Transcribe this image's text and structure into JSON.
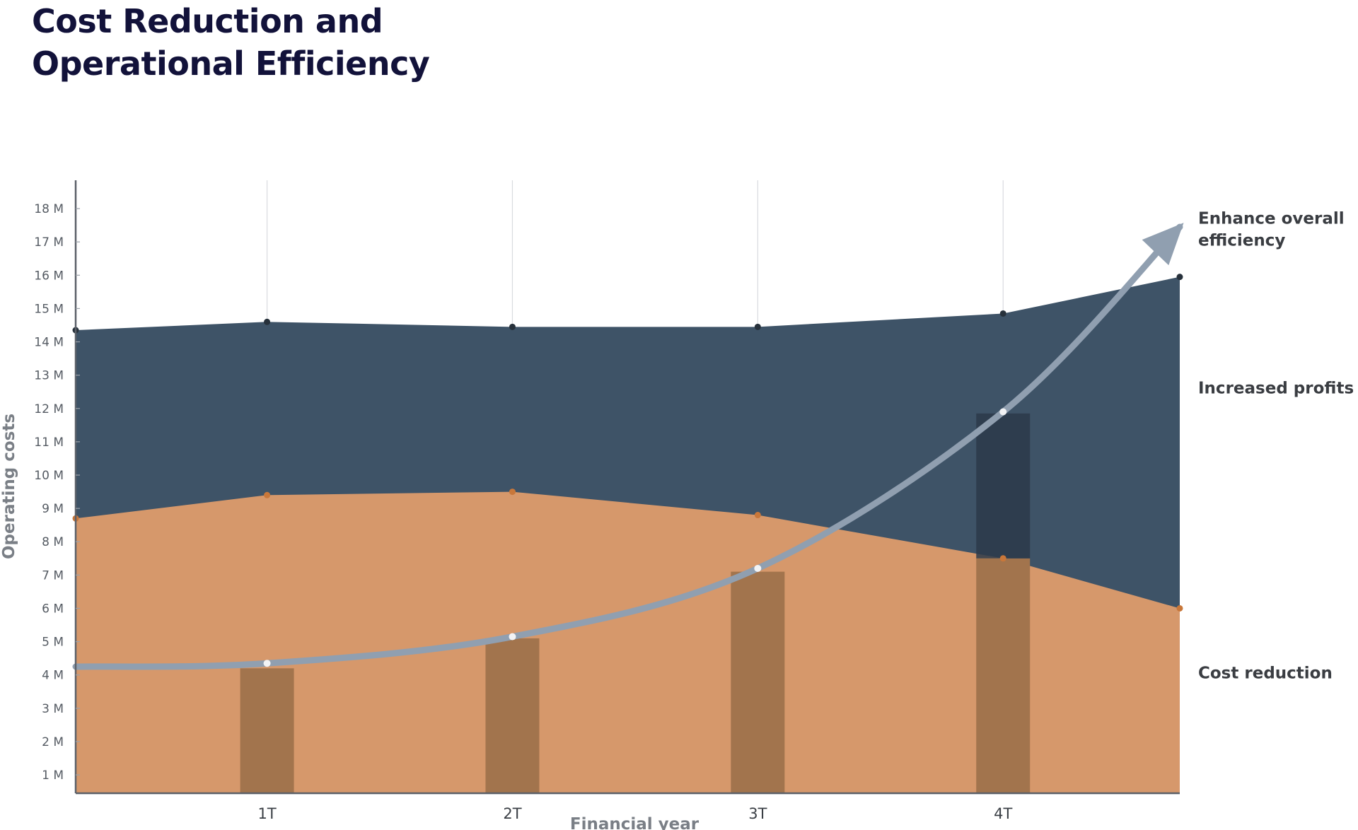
{
  "header": {
    "title_line1": "Cost Reduction and",
    "title_line2": "Operational Efficiency"
  },
  "chart_data": {
    "type": "area",
    "x_tick_labels": [
      "1T",
      "2T",
      "3T",
      "4T"
    ],
    "y_tick_labels": [
      "1 M",
      "2 M",
      "3 M",
      "4 M",
      "5 M",
      "6 M",
      "7 M",
      "8 M",
      "9 M",
      "10 M",
      "11 M",
      "12 M",
      "13 M",
      "14 M",
      "15 M",
      "16 M",
      "17 M",
      "18 M"
    ],
    "y_ticks": [
      1,
      2,
      3,
      4,
      5,
      6,
      7,
      8,
      9,
      10,
      11,
      12,
      13,
      14,
      15,
      16,
      17,
      18
    ],
    "xlabel": "Financial year",
    "ylabel": "Operating costs",
    "xlim": [
      0.22,
      4.72
    ],
    "ylim": [
      0.45,
      18.85
    ],
    "grid_vertical": true,
    "area_series": [
      {
        "x": [
          0.22,
          1,
          2,
          3,
          4,
          4.72
        ],
        "values": [
          14.35,
          14.6,
          14.45,
          14.45,
          14.85,
          15.95
        ],
        "color": "#3e5367",
        "marker_color": "#27313b"
      },
      {
        "x": [
          0.22,
          1,
          2,
          3,
          4,
          4.72
        ],
        "values": [
          8.7,
          9.4,
          9.5,
          8.8,
          7.5,
          6.0
        ],
        "color": "#d6986b",
        "marker_color": "#c8773a"
      }
    ],
    "bars": {
      "x": [
        1,
        2,
        3,
        4
      ],
      "values": [
        4.2,
        5.1,
        7.1,
        11.85
      ],
      "color": "#a2744d",
      "overlay_color": "#2b3a4a"
    },
    "trend_curve": {
      "x": [
        0.22,
        1,
        2,
        3,
        4,
        4.72
      ],
      "values": [
        4.25,
        4.35,
        5.15,
        7.2,
        11.9,
        17.45
      ],
      "markers_x": [
        1,
        2,
        3,
        4
      ],
      "markers_values": [
        4.35,
        5.15,
        7.2,
        11.9
      ],
      "color": "#909fb0"
    },
    "annotations": [
      {
        "lines": [
          "Enhance overall",
          "efficiency"
        ],
        "value": 17.55
      },
      {
        "lines": [
          "Increased profits"
        ],
        "value": 12.45
      },
      {
        "lines": [
          "Cost reduction"
        ],
        "value": 3.9
      }
    ]
  }
}
